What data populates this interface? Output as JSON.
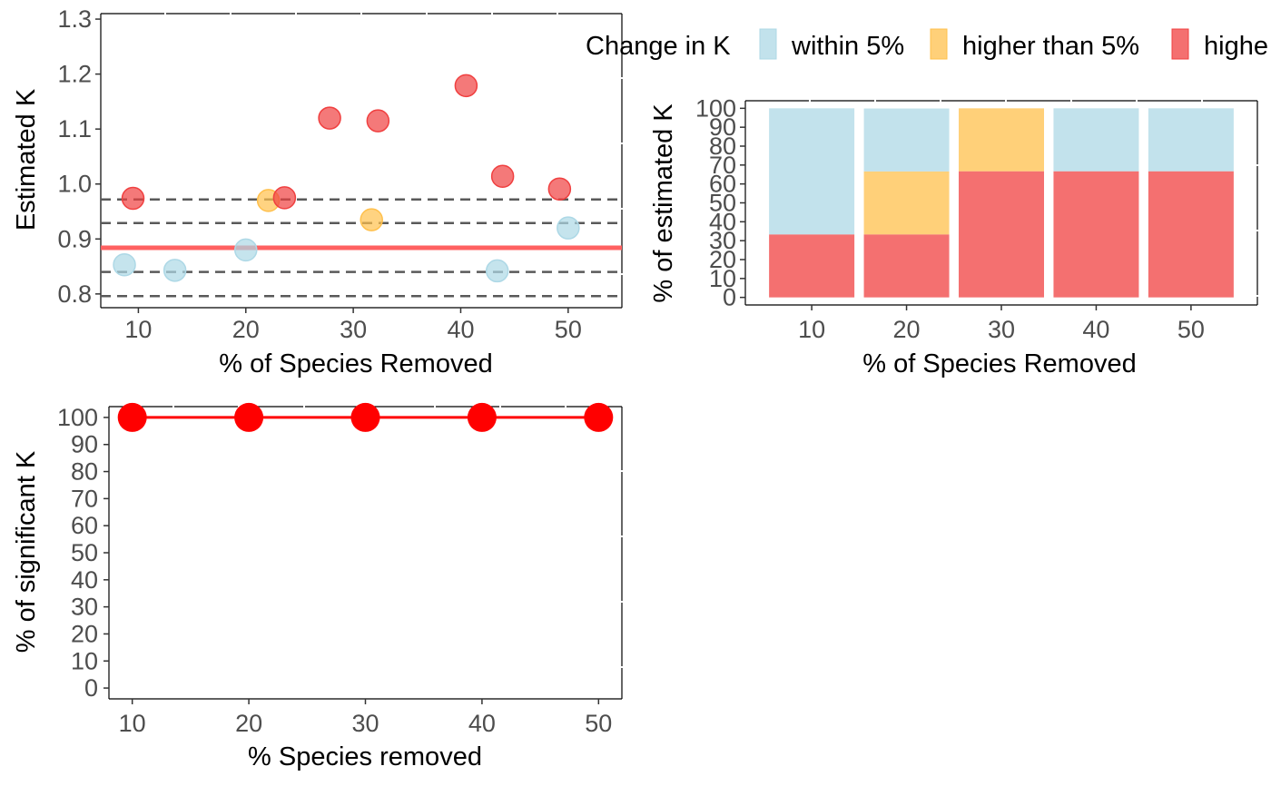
{
  "colors": {
    "within": "#add8e6",
    "higher": "#ffc04c",
    "highest": "#f04040",
    "ref_line": "#ff6161",
    "sig_line": "#ff0000"
  },
  "legend": {
    "title": "Change in K",
    "items": [
      {
        "label": "within 5%",
        "color": "#add8e6"
      },
      {
        "label": "higher than 5%",
        "color": "#ffc04c"
      },
      {
        "label": "highe",
        "color": "#f04040"
      }
    ]
  },
  "chart_data": [
    {
      "type": "scatter",
      "xlabel": "% of Species Removed",
      "ylabel": "Estimated K",
      "xlim": [
        6.5,
        55
      ],
      "ylim": [
        0.775,
        1.31
      ],
      "xticks": [
        "10",
        "20",
        "30",
        "40",
        "50"
      ],
      "yticks": [
        "0.8",
        "0.9",
        "1.0",
        "1.1",
        "1.2",
        "1.3"
      ],
      "reference_line": 0.884,
      "dashed_lines": [
        0.972,
        0.929,
        0.84,
        0.796
      ],
      "series": [
        {
          "category": "within",
          "points": [
            [
              8.7,
              0.853
            ],
            [
              13.4,
              0.843
            ],
            [
              20.0,
              0.88
            ],
            [
              43.4,
              0.842
            ],
            [
              50.0,
              0.92
            ]
          ]
        },
        {
          "category": "higher",
          "points": [
            [
              22.1,
              0.97
            ],
            [
              31.7,
              0.935
            ]
          ]
        },
        {
          "category": "highest",
          "points": [
            [
              9.5,
              0.974
            ],
            [
              23.6,
              0.975
            ],
            [
              27.8,
              1.12
            ],
            [
              32.3,
              1.115
            ],
            [
              40.5,
              1.179
            ],
            [
              43.9,
              1.014
            ],
            [
              49.2,
              0.991
            ]
          ]
        }
      ]
    },
    {
      "type": "bar",
      "stacked": true,
      "xlabel": "% of Species Removed",
      "ylabel": "% of estimated  K",
      "ylim": [
        -4,
        104
      ],
      "yticks": [
        "0",
        "10",
        "20",
        "30",
        "40",
        "50",
        "60",
        "70",
        "80",
        "90",
        "100"
      ],
      "categories": [
        "10",
        "20",
        "30",
        "40",
        "50"
      ],
      "series": [
        {
          "category": "highest",
          "values": [
            33.3,
            33.3,
            66.7,
            66.7,
            66.7
          ]
        },
        {
          "category": "higher",
          "values": [
            0,
            33.3,
            33.3,
            0,
            0
          ]
        },
        {
          "category": "within",
          "values": [
            66.7,
            33.3,
            0,
            33.3,
            33.3
          ]
        }
      ]
    },
    {
      "type": "line",
      "xlabel": "% Species removed",
      "ylabel": "% of significant K",
      "xlim": [
        8,
        52
      ],
      "ylim": [
        -4,
        104
      ],
      "xticks": [
        "10",
        "20",
        "30",
        "40",
        "50"
      ],
      "yticks": [
        "0",
        "10",
        "20",
        "30",
        "40",
        "50",
        "60",
        "70",
        "80",
        "90",
        "100"
      ],
      "x": [
        10,
        20,
        30,
        40,
        50
      ],
      "y": [
        100,
        100,
        100,
        100,
        100
      ]
    }
  ]
}
